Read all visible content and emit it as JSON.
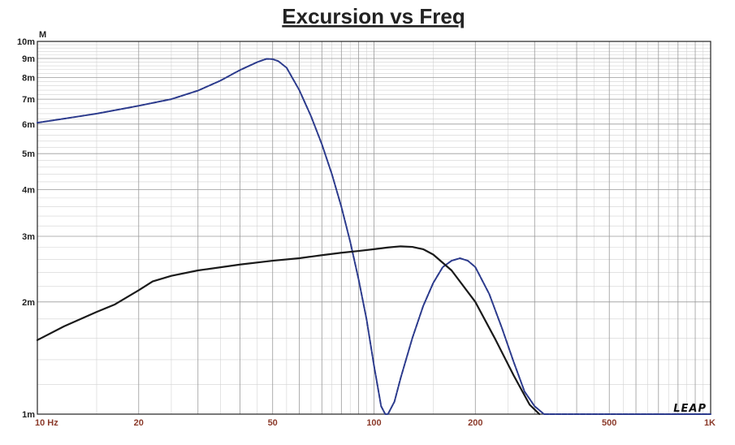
{
  "chart_data": {
    "type": "line",
    "title": "Excursion vs Freq",
    "y_unit": "M",
    "x_scale": "log",
    "y_scale": "log",
    "xlim": [
      10,
      1000
    ],
    "ylim": [
      0.001,
      0.01
    ],
    "grid": true,
    "brand": "LEAP",
    "x_ticks": [
      {
        "value": 10,
        "label": "10  Hz"
      },
      {
        "value": 20,
        "label": "20"
      },
      {
        "value": 50,
        "label": "50"
      },
      {
        "value": 100,
        "label": "100"
      },
      {
        "value": 200,
        "label": "200"
      },
      {
        "value": 500,
        "label": "500"
      },
      {
        "value": 1000,
        "label": "1K"
      }
    ],
    "y_ticks": [
      {
        "value": 0.01,
        "label": "10m"
      },
      {
        "value": 0.009,
        "label": "9m"
      },
      {
        "value": 0.008,
        "label": "8m"
      },
      {
        "value": 0.007,
        "label": "7m"
      },
      {
        "value": 0.006,
        "label": "6m"
      },
      {
        "value": 0.005,
        "label": "5m"
      },
      {
        "value": 0.004,
        "label": "4m"
      },
      {
        "value": 0.003,
        "label": "3m"
      },
      {
        "value": 0.002,
        "label": "2m"
      },
      {
        "value": 0.001,
        "label": "1m"
      }
    ],
    "series": [
      {
        "color": "#2b3a8c",
        "dashed": true,
        "x": [
          10,
          15,
          20,
          25,
          30,
          35,
          40,
          45,
          48,
          50,
          52,
          55,
          60,
          65,
          70,
          75,
          80,
          85,
          90,
          95,
          100,
          105,
          108,
          110,
          115,
          120,
          130,
          140,
          150,
          160,
          170,
          180,
          190,
          200,
          220,
          240,
          260,
          280,
          300,
          320,
          330,
          400,
          600,
          800,
          1000
        ],
        "y": [
          0.00605,
          0.0064,
          0.00672,
          0.007,
          0.00738,
          0.00785,
          0.00838,
          0.0088,
          0.00898,
          0.00896,
          0.00885,
          0.0085,
          0.0074,
          0.0063,
          0.0053,
          0.0044,
          0.0036,
          0.0029,
          0.0023,
          0.0018,
          0.00135,
          0.00105,
          0.001,
          0.001,
          0.00108,
          0.00125,
          0.0016,
          0.00195,
          0.00225,
          0.00248,
          0.00258,
          0.00262,
          0.00258,
          0.00248,
          0.0021,
          0.0017,
          0.00138,
          0.00115,
          0.00105,
          0.001,
          0.001,
          0.001,
          0.001,
          0.001,
          0.001
        ]
      },
      {
        "color": "#1a1a1a",
        "dashed": false,
        "x": [
          10,
          12,
          15,
          17,
          20,
          22,
          25,
          30,
          40,
          50,
          60,
          70,
          80,
          90,
          100,
          110,
          120,
          130,
          140,
          150,
          170,
          200,
          230,
          260,
          290,
          310
        ],
        "y": [
          0.00158,
          0.00172,
          0.00188,
          0.00197,
          0.00215,
          0.00227,
          0.00235,
          0.00243,
          0.00252,
          0.00258,
          0.00262,
          0.00267,
          0.00271,
          0.00274,
          0.00277,
          0.0028,
          0.00282,
          0.00281,
          0.00277,
          0.00268,
          0.00243,
          0.002,
          0.00158,
          0.00127,
          0.00106,
          0.001
        ]
      }
    ]
  }
}
